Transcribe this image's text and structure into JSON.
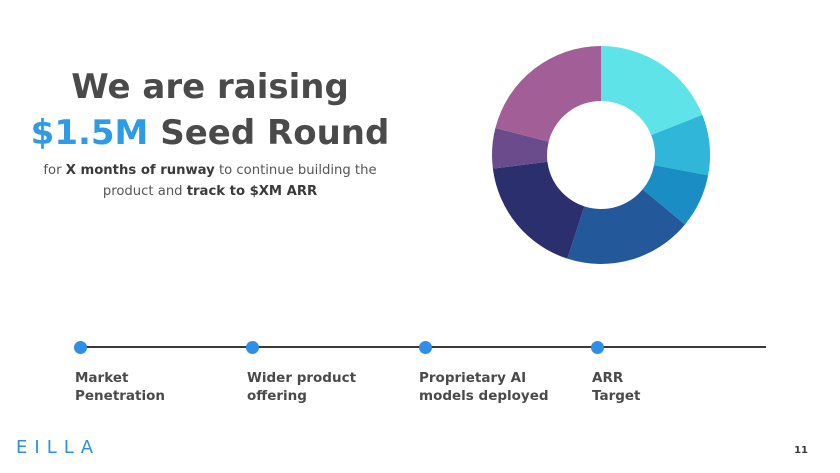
{
  "title": {
    "line1": "We are raising",
    "amount": "$1.5M",
    "line2_rest": " Seed Round"
  },
  "subtitle": {
    "part1": "for ",
    "highlight1": "X months of runway",
    "part2": " to continue building the product and ",
    "highlight2": "track to $XM ARR"
  },
  "donut": {
    "segments": [
      {
        "color": "#5ee3e8",
        "value": 19
      },
      {
        "color": "#2fb6d8",
        "value": 9
      },
      {
        "color": "#1a8ec4",
        "value": 8
      },
      {
        "color": "#23589b",
        "value": 19
      },
      {
        "color": "#2b2f6e",
        "value": 18
      },
      {
        "color": "#6a4c8c",
        "value": 6
      },
      {
        "color": "#a25f97",
        "value": 21
      }
    ]
  },
  "timeline": {
    "milestones": [
      {
        "line1": "Market",
        "line2": "Penetration"
      },
      {
        "line1": "Wider product",
        "line2": "offering"
      },
      {
        "line1": "Proprietary AI",
        "line2": "models deployed"
      },
      {
        "line1": "ARR",
        "line2": "Target"
      }
    ]
  },
  "footer": {
    "logo_letters": [
      "E",
      "I",
      "L",
      "L",
      "A"
    ],
    "page_number": "11"
  }
}
